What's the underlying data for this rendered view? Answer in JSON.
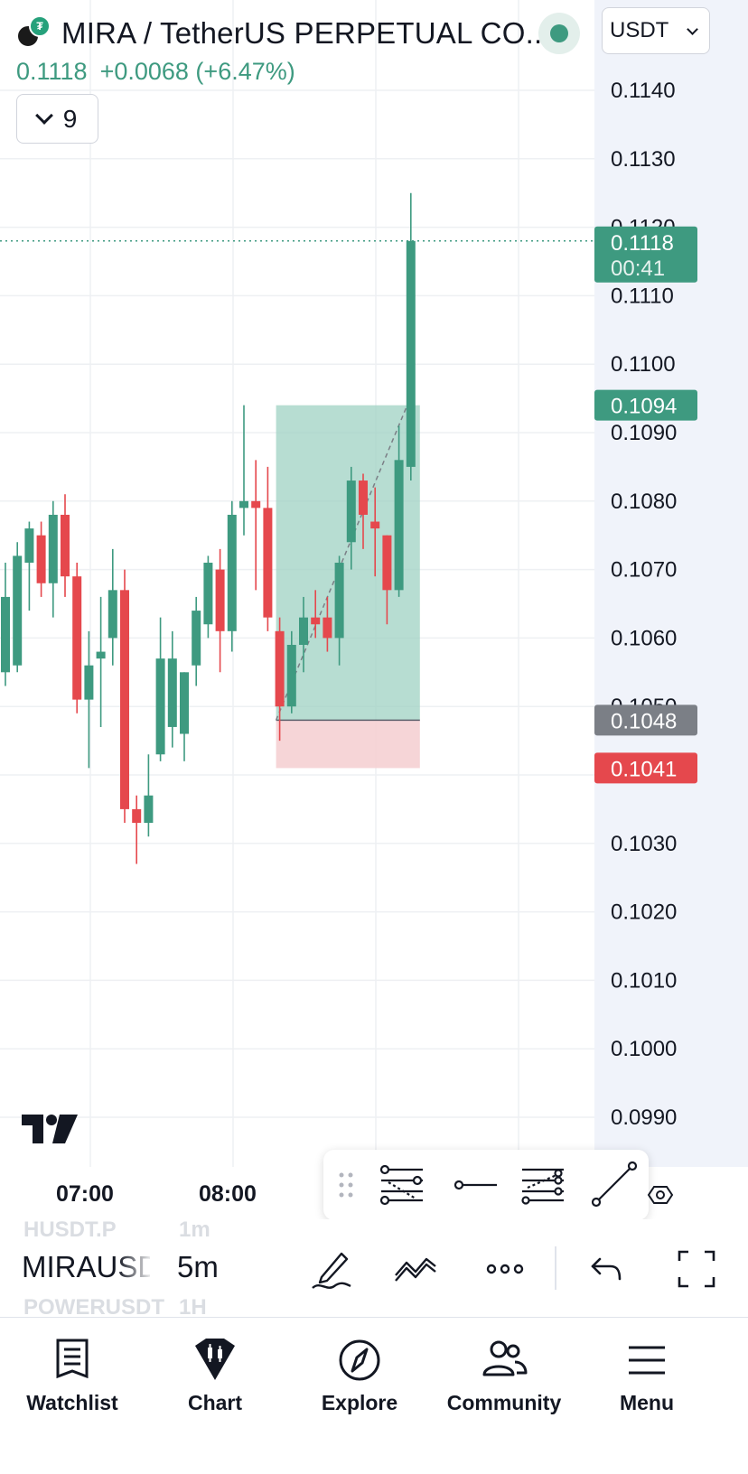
{
  "header": {
    "title": "MIRA / TetherUS PERPETUAL CO...",
    "last_price": "0.1118",
    "change": "+0.0068 (+6.47%)",
    "indicators_count": "9",
    "currency": "USDT"
  },
  "colors": {
    "up": "#3e9a80",
    "down": "#e5484d",
    "grid": "#eef0f3",
    "long_profit_zone": "#9fd1c3",
    "long_stop_zone": "#f5d0d3",
    "entry_label": "#7b7f86"
  },
  "chart_data": {
    "type": "candlestick",
    "interval": "5m",
    "y_axis": {
      "ticks": [
        "0.1140",
        "0.1130",
        "0.1120",
        "0.1110",
        "0.1100",
        "0.1090",
        "0.1080",
        "0.1070",
        "0.1060",
        "0.1050",
        "0.1040",
        "0.1030",
        "0.1020",
        "0.1010",
        "0.1000",
        "0.0990"
      ],
      "range": [
        0.0984,
        0.1145
      ]
    },
    "x_axis": {
      "labels": [
        "07:00",
        "08:00"
      ]
    },
    "price_labels": [
      {
        "price": "0.1118",
        "countdown": "00:41",
        "kind": "last"
      },
      {
        "price": "0.1094",
        "kind": "target"
      },
      {
        "price": "0.1048",
        "kind": "entry"
      },
      {
        "price": "0.1041",
        "kind": "stop"
      }
    ],
    "candles": [
      {
        "o": 0.1055,
        "h": 0.1071,
        "l": 0.1053,
        "c": 0.1066
      },
      {
        "o": 0.1056,
        "h": 0.1074,
        "l": 0.1055,
        "c": 0.1072
      },
      {
        "o": 0.1071,
        "h": 0.1077,
        "l": 0.1064,
        "c": 0.1076
      },
      {
        "o": 0.1075,
        "h": 0.1077,
        "l": 0.1066,
        "c": 0.1068
      },
      {
        "o": 0.1068,
        "h": 0.108,
        "l": 0.1063,
        "c": 0.1078
      },
      {
        "o": 0.1078,
        "h": 0.1081,
        "l": 0.1066,
        "c": 0.1069
      },
      {
        "o": 0.1069,
        "h": 0.1071,
        "l": 0.1049,
        "c": 0.1051
      },
      {
        "o": 0.1051,
        "h": 0.1061,
        "l": 0.1041,
        "c": 0.1056
      },
      {
        "o": 0.1057,
        "h": 0.1066,
        "l": 0.1047,
        "c": 0.1058
      },
      {
        "o": 0.106,
        "h": 0.1073,
        "l": 0.1056,
        "c": 0.1067
      },
      {
        "o": 0.1067,
        "h": 0.107,
        "l": 0.1033,
        "c": 0.1035
      },
      {
        "o": 0.1035,
        "h": 0.1037,
        "l": 0.1027,
        "c": 0.1033
      },
      {
        "o": 0.1033,
        "h": 0.1043,
        "l": 0.1031,
        "c": 0.1037
      },
      {
        "o": 0.1043,
        "h": 0.1063,
        "l": 0.1042,
        "c": 0.1057
      },
      {
        "o": 0.1047,
        "h": 0.1061,
        "l": 0.1044,
        "c": 0.1057
      },
      {
        "o": 0.1046,
        "h": 0.1055,
        "l": 0.1042,
        "c": 0.1055
      },
      {
        "o": 0.1056,
        "h": 0.1066,
        "l": 0.1053,
        "c": 0.1064
      },
      {
        "o": 0.1062,
        "h": 0.1072,
        "l": 0.106,
        "c": 0.1071
      },
      {
        "o": 0.107,
        "h": 0.1073,
        "l": 0.1055,
        "c": 0.1061
      },
      {
        "o": 0.1061,
        "h": 0.108,
        "l": 0.1058,
        "c": 0.1078
      },
      {
        "o": 0.1079,
        "h": 0.1094,
        "l": 0.1075,
        "c": 0.108
      },
      {
        "o": 0.108,
        "h": 0.1086,
        "l": 0.1067,
        "c": 0.1079
      },
      {
        "o": 0.1079,
        "h": 0.1085,
        "l": 0.1061,
        "c": 0.1063
      },
      {
        "o": 0.1061,
        "h": 0.1063,
        "l": 0.1045,
        "c": 0.105
      },
      {
        "o": 0.105,
        "h": 0.1061,
        "l": 0.1049,
        "c": 0.1059
      },
      {
        "o": 0.1059,
        "h": 0.1066,
        "l": 0.1055,
        "c": 0.1063
      },
      {
        "o": 0.1063,
        "h": 0.1067,
        "l": 0.106,
        "c": 0.1062
      },
      {
        "o": 0.1063,
        "h": 0.1066,
        "l": 0.1058,
        "c": 0.106
      },
      {
        "o": 0.106,
        "h": 0.1072,
        "l": 0.1056,
        "c": 0.1071
      },
      {
        "o": 0.1074,
        "h": 0.1085,
        "l": 0.107,
        "c": 0.1083
      },
      {
        "o": 0.1083,
        "h": 0.1084,
        "l": 0.1073,
        "c": 0.1078
      },
      {
        "o": 0.1077,
        "h": 0.1082,
        "l": 0.1069,
        "c": 0.1076
      },
      {
        "o": 0.1075,
        "h": 0.1075,
        "l": 0.1062,
        "c": 0.1067
      },
      {
        "o": 0.1067,
        "h": 0.1091,
        "l": 0.1066,
        "c": 0.1086
      },
      {
        "o": 0.1085,
        "h": 0.1125,
        "l": 0.1083,
        "c": 0.1118
      }
    ],
    "position": {
      "type": "long",
      "entry": 0.1048,
      "target": 0.1094,
      "stop": 0.1041,
      "start_candle": 23,
      "end_candle": 34
    }
  },
  "draw_toolbar": {
    "tools": [
      "drag-handle-icon",
      "long-position-tool-icon",
      "horizontal-ray-tool-icon",
      "parallel-channel-tool-icon",
      "trend-line-tool-icon",
      "settings-icon"
    ]
  },
  "controls": {
    "symbol_prev": "HUSDT.P",
    "symbol_current": "MIRAUSDT.P",
    "symbol_next": "POWERUSDT",
    "tf_prev": "1m",
    "tf_current": "5m",
    "tf_next": "1H"
  },
  "tabs": [
    {
      "label": "Watchlist",
      "icon": "watchlist-icon"
    },
    {
      "label": "Chart",
      "icon": "chart-icon"
    },
    {
      "label": "Explore",
      "icon": "compass-icon"
    },
    {
      "label": "Community",
      "icon": "community-icon"
    },
    {
      "label": "Menu",
      "icon": "menu-icon"
    }
  ]
}
